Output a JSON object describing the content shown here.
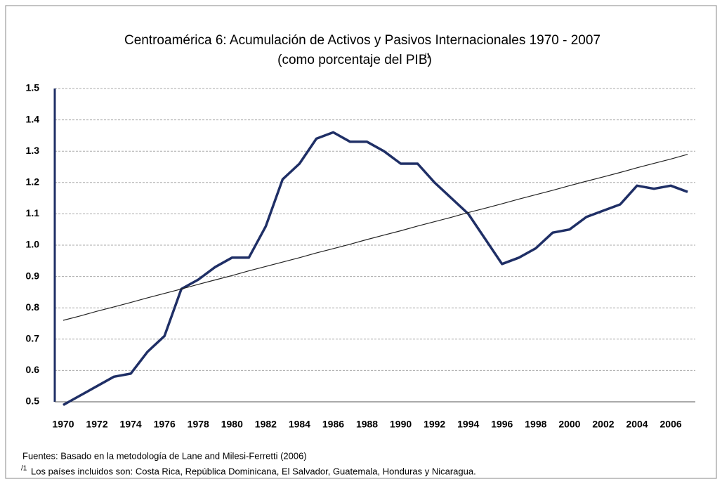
{
  "chart_data": {
    "type": "line",
    "title": "Centroamérica 6: Acumulación de Activos y Pasivos Internacionales 1970 - 2007",
    "subtitle": "(como porcentaje del PIB)",
    "subtitle_note": "/1",
    "categories": [
      "1970",
      null,
      "1972",
      null,
      "1974",
      null,
      "1976",
      null,
      "1978",
      null,
      "1980",
      null,
      "1982",
      null,
      "1984",
      null,
      "1986",
      null,
      "1988",
      null,
      "1990",
      null,
      "1992",
      null,
      "1994",
      null,
      "1996",
      null,
      "1998",
      null,
      "2000",
      null,
      "2002",
      null,
      "2004",
      null,
      "2006",
      null
    ],
    "series": [
      {
        "color": "#1f2f66",
        "values": [
          0.49,
          0.52,
          0.55,
          0.58,
          0.59,
          0.66,
          0.71,
          0.86,
          0.89,
          0.93,
          0.96,
          0.96,
          1.06,
          1.21,
          1.26,
          1.34,
          1.36,
          1.33,
          1.33,
          1.3,
          1.26,
          1.26,
          1.2,
          1.15,
          1.1,
          1.02,
          0.94,
          0.96,
          0.99,
          1.04,
          1.05,
          1.09,
          1.11,
          1.13,
          1.19,
          1.18,
          1.19,
          1.17
        ]
      },
      {
        "color": "#222222",
        "values": [
          0.76,
          0.774,
          0.789,
          0.803,
          0.817,
          0.832,
          0.846,
          0.86,
          0.875,
          0.889,
          0.903,
          0.918,
          0.932,
          0.946,
          0.96,
          0.975,
          0.989,
          1.003,
          1.018,
          1.032,
          1.046,
          1.061,
          1.075,
          1.089,
          1.104,
          1.118,
          1.132,
          1.147,
          1.161,
          1.175,
          1.19,
          1.204,
          1.218,
          1.232,
          1.247,
          1.261,
          1.275,
          1.29
        ]
      }
    ],
    "ylim": [
      0.5,
      1.5
    ],
    "yticks": [
      0.5,
      0.6,
      0.7,
      0.8,
      0.9,
      {
        "value": 1.0,
        "label": "1.0"
      },
      1.1,
      1.2,
      1.3,
      1.4,
      1.5
    ],
    "grid": true,
    "source": "Fuentes: Basado en la metodología de Lane and Milesi-Ferretti (2006)",
    "footnote_mark": "/1",
    "footnote": "Los países incluidos son: Costa Rica, República Dominicana, El Salvador, Guatemala, Honduras y Nicaragua."
  }
}
